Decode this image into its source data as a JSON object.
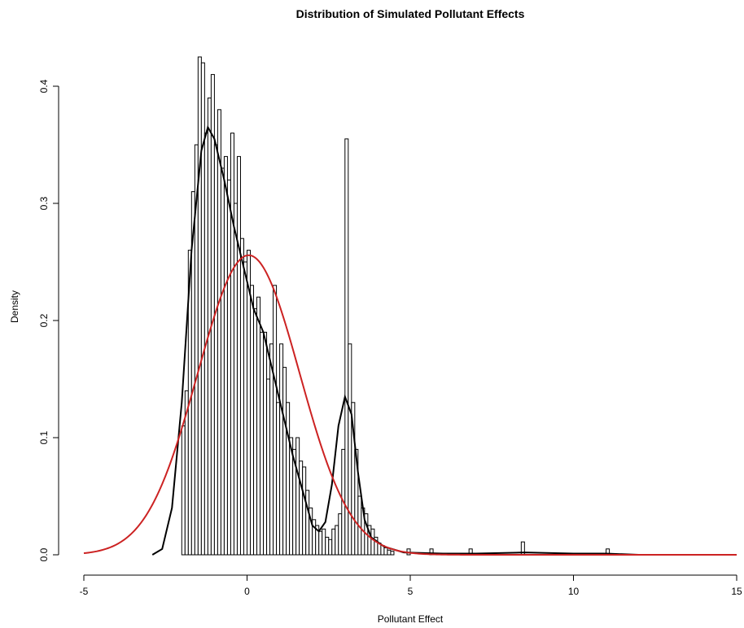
{
  "chart_data": {
    "type": "bar",
    "title": "Distribution of Simulated Pollutant Effects",
    "xlabel": "Pollutant Effect",
    "ylabel": "Density",
    "xlim": [
      -5,
      15
    ],
    "ylim": [
      0,
      0.43
    ],
    "x_ticks": [
      "-5",
      "0",
      "5",
      "10",
      "15"
    ],
    "y_ticks": [
      "0.0",
      "0.1",
      "0.2",
      "0.3",
      "0.4"
    ],
    "bin_width": 0.1,
    "histogram": [
      [
        -2.0,
        0.11
      ],
      [
        -1.9,
        0.14
      ],
      [
        -1.8,
        0.26
      ],
      [
        -1.7,
        0.31
      ],
      [
        -1.6,
        0.35
      ],
      [
        -1.5,
        0.425
      ],
      [
        -1.4,
        0.42
      ],
      [
        -1.3,
        0.36
      ],
      [
        -1.2,
        0.39
      ],
      [
        -1.1,
        0.41
      ],
      [
        -1.0,
        0.35
      ],
      [
        -0.9,
        0.38
      ],
      [
        -0.8,
        0.33
      ],
      [
        -0.7,
        0.34
      ],
      [
        -0.6,
        0.32
      ],
      [
        -0.5,
        0.36
      ],
      [
        -0.4,
        0.3
      ],
      [
        -0.3,
        0.34
      ],
      [
        -0.2,
        0.27
      ],
      [
        -0.1,
        0.25
      ],
      [
        0.0,
        0.26
      ],
      [
        0.1,
        0.23
      ],
      [
        0.2,
        0.21
      ],
      [
        0.3,
        0.22
      ],
      [
        0.4,
        0.19
      ],
      [
        0.5,
        0.19
      ],
      [
        0.6,
        0.15
      ],
      [
        0.7,
        0.18
      ],
      [
        0.8,
        0.23
      ],
      [
        0.9,
        0.13
      ],
      [
        1.0,
        0.18
      ],
      [
        1.1,
        0.16
      ],
      [
        1.2,
        0.13
      ],
      [
        1.3,
        0.1
      ],
      [
        1.4,
        0.09
      ],
      [
        1.5,
        0.1
      ],
      [
        1.6,
        0.08
      ],
      [
        1.7,
        0.075
      ],
      [
        1.8,
        0.055
      ],
      [
        1.9,
        0.04
      ],
      [
        2.0,
        0.03
      ],
      [
        2.1,
        0.025
      ],
      [
        2.2,
        0.02
      ],
      [
        2.3,
        0.022
      ],
      [
        2.4,
        0.015
      ],
      [
        2.5,
        0.013
      ],
      [
        2.6,
        0.022
      ],
      [
        2.7,
        0.025
      ],
      [
        2.8,
        0.035
      ],
      [
        2.9,
        0.09
      ],
      [
        3.0,
        0.355
      ],
      [
        3.1,
        0.18
      ],
      [
        3.2,
        0.13
      ],
      [
        3.3,
        0.09
      ],
      [
        3.4,
        0.05
      ],
      [
        3.5,
        0.04
      ],
      [
        3.6,
        0.035
      ],
      [
        3.7,
        0.025
      ],
      [
        3.8,
        0.022
      ],
      [
        3.9,
        0.015
      ],
      [
        4.0,
        0.01
      ],
      [
        4.1,
        0.008
      ],
      [
        4.2,
        0.006
      ],
      [
        4.3,
        0.004
      ],
      [
        4.4,
        0.003
      ],
      [
        4.9,
        0.005
      ],
      [
        5.6,
        0.005
      ],
      [
        6.8,
        0.005
      ],
      [
        8.4,
        0.011
      ],
      [
        11.0,
        0.005
      ]
    ],
    "series": [
      {
        "style": "kde",
        "color": "#000000",
        "x": [
          -2.9,
          -2.6,
          -2.3,
          -2.0,
          -1.7,
          -1.4,
          -1.2,
          -1.0,
          -0.7,
          -0.4,
          -0.1,
          0.2,
          0.5,
          0.8,
          1.1,
          1.4,
          1.7,
          2.0,
          2.2,
          2.4,
          2.6,
          2.8,
          3.0,
          3.2,
          3.4,
          3.6,
          3.8,
          4.2,
          4.8,
          6.0,
          7.0,
          8.5,
          10.0,
          11.0,
          12.0
        ],
        "y": [
          0.0,
          0.005,
          0.04,
          0.13,
          0.26,
          0.345,
          0.365,
          0.355,
          0.32,
          0.28,
          0.245,
          0.21,
          0.19,
          0.155,
          0.12,
          0.085,
          0.055,
          0.025,
          0.02,
          0.028,
          0.06,
          0.11,
          0.135,
          0.12,
          0.07,
          0.03,
          0.015,
          0.007,
          0.002,
          0.001,
          0.001,
          0.002,
          0.001,
          0.001,
          0.0
        ]
      },
      {
        "style": "normal",
        "color": "#cc2222",
        "mean": 0.05,
        "sd": 1.56
      }
    ]
  }
}
